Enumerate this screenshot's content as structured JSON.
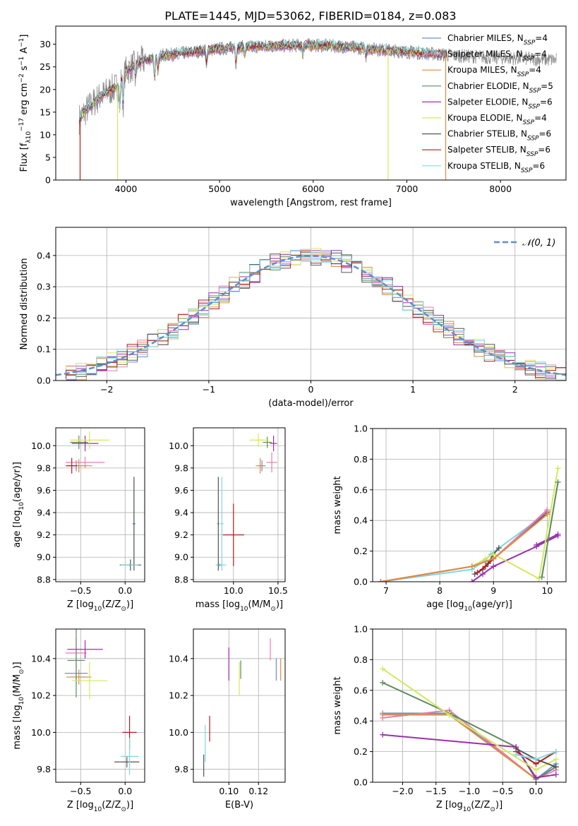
{
  "figure_title": "PLATE=1445, MJD=53062, FIBERID=0184, z=0.083",
  "colors": {
    "chabrier_miles": "#6a8fd8",
    "salpeter_miles": "#e87fb0",
    "kroupa_miles": "#e08a3c",
    "chabrier_elodie": "#5c8a5c",
    "salpeter_elodie": "#9b2fb0",
    "kroupa_elodie": "#d4e85a",
    "chabrier_stelib": "#555555",
    "salpeter_stelib": "#b01e1e",
    "kroupa_stelib": "#7fd8e0",
    "normal_curve": "#5b8fd6"
  },
  "chart_data": [
    {
      "id": "spectrum",
      "type": "line",
      "title": "",
      "xlabel": "wavelength [Angstrom, rest frame]",
      "ylabel_parts": [
        "Flux [f",
        "λ",
        "10",
        "−17",
        " erg cm",
        "−2",
        " s",
        "−1",
        " A",
        "−1",
        "]"
      ],
      "xlim": [
        3250,
        8700
      ],
      "ylim": [
        0,
        34
      ],
      "xticks": [
        4000,
        5000,
        6000,
        7000,
        8000
      ],
      "yticks": [
        0,
        5,
        10,
        15,
        20,
        25,
        30
      ],
      "grid": false,
      "legend_position": "upper-right",
      "legend": [
        {
          "base": "Chabrier MILES, N",
          "sub": "SSP",
          "tail": "=4",
          "color": "#6a8fd8"
        },
        {
          "base": "Salpeter MILES, N",
          "sub": "SSP",
          "tail": "=4",
          "color": "#e87fb0"
        },
        {
          "base": "Kroupa MILES, N",
          "sub": "SSP",
          "tail": "=4",
          "color": "#e08a3c"
        },
        {
          "base": "Chabrier ELODIE, N",
          "sub": "SSP",
          "tail": "=5",
          "color": "#5c8a5c"
        },
        {
          "base": "Salpeter ELODIE, N",
          "sub": "SSP",
          "tail": "=6",
          "color": "#9b2fb0"
        },
        {
          "base": "Kroupa ELODIE, N",
          "sub": "SSP",
          "tail": "=4",
          "color": "#d4e85a"
        },
        {
          "base": "Chabrier STELIB, N",
          "sub": "SSP",
          "tail": "=6",
          "color": "#555555"
        },
        {
          "base": "Salpeter STELIB, N",
          "sub": "SSP",
          "tail": "=6",
          "color": "#b01e1e"
        },
        {
          "base": "Kroupa STELIB, N",
          "sub": "SSP",
          "tail": "=6",
          "color": "#7fd8e0"
        }
      ],
      "continuum": {
        "x": [
          3500,
          3600,
          3700,
          3800,
          3900,
          4000,
          4100,
          4200,
          4400,
          4600,
          4800,
          5000,
          5200,
          5500,
          5800,
          6000,
          6300,
          6600,
          6900,
          7200,
          7500,
          8000,
          8300,
          8600
        ],
        "y": [
          13.5,
          16,
          18,
          19.5,
          20.5,
          24,
          25.5,
          26.5,
          27.5,
          28,
          28.5,
          29,
          29.3,
          29.6,
          29.7,
          29.8,
          29.5,
          29,
          28.5,
          28,
          27.5,
          27,
          26.8,
          26.5
        ]
      },
      "model_range": [
        3500,
        7430
      ],
      "data_range": [
        3500,
        8600
      ],
      "absorption_lines": [
        {
          "x": 3934,
          "depth": 0.3
        },
        {
          "x": 3969,
          "depth": 0.28
        },
        {
          "x": 4101,
          "depth": 0.12
        },
        {
          "x": 4305,
          "depth": 0.18
        },
        {
          "x": 4341,
          "depth": 0.1
        },
        {
          "x": 4861,
          "depth": 0.1
        },
        {
          "x": 5175,
          "depth": 0.12
        },
        {
          "x": 5270,
          "depth": 0.06
        },
        {
          "x": 5890,
          "depth": 0.08
        },
        {
          "x": 6563,
          "depth": 0.06
        }
      ],
      "model_dips": [
        {
          "x": 3510,
          "to": 0,
          "color": "#b01e1e"
        },
        {
          "x": 3910,
          "to": 0,
          "color": "#d4e85a"
        },
        {
          "x": 6800,
          "to": 0,
          "color": "#d4e85a"
        },
        {
          "x": 7415,
          "to": 0,
          "color": "#e08a3c"
        }
      ]
    },
    {
      "id": "residuals",
      "type": "line",
      "title": "",
      "xlabel": "(data-model)/error",
      "ylabel": "Normed distribution",
      "xlim": [
        -2.5,
        2.5
      ],
      "ylim": [
        0,
        0.49
      ],
      "xticks": [
        -2,
        -1,
        0,
        1,
        2
      ],
      "xticklabels": [
        "−2",
        "−1",
        "0",
        "1",
        "2"
      ],
      "yticks": [
        0,
        0.1,
        0.2,
        0.3,
        0.4
      ],
      "yticklabels": [
        "0.0",
        "0.1",
        "0.2",
        "0.3",
        "0.4"
      ],
      "grid": true,
      "legend_position": "upper-right",
      "legend_label": "𝒩(0, 1)",
      "bin_width": 0.1,
      "normal": {
        "mean": 0,
        "sigma": 1
      }
    },
    {
      "id": "age_vs_Z",
      "type": "scatter",
      "xlabel_parts": [
        "Z [log",
        "10",
        "(Z/Z",
        "⊙",
        ")]"
      ],
      "ylabel_parts": [
        "age  [log",
        "10",
        "(age/yr)]"
      ],
      "xlim": [
        -0.78,
        0.22
      ],
      "ylim": [
        8.78,
        10.16
      ],
      "xticks": [
        -0.5,
        0.0
      ],
      "xticklabels": [
        "−0.5",
        "0.0"
      ],
      "yticks": [
        8.8,
        9.0,
        9.2,
        9.4,
        9.6,
        9.8,
        10.0
      ],
      "yticklabels": [
        "8.8",
        "9.0",
        "9.2",
        "9.4",
        "9.6",
        "9.8",
        "10.0"
      ],
      "grid": true,
      "points": [
        {
          "x": -0.55,
          "y": 9.82,
          "xerr": 0.12,
          "yerr": 0.05,
          "color": "#6a8fd8"
        },
        {
          "x": -0.45,
          "y": 9.85,
          "xerr": 0.22,
          "yerr": 0.05,
          "color": "#e87fb0"
        },
        {
          "x": -0.52,
          "y": 9.82,
          "xerr": 0.15,
          "yerr": 0.06,
          "color": "#e08a3c"
        },
        {
          "x": -0.52,
          "y": 10.03,
          "xerr": 0.1,
          "yerr": 0.06,
          "color": "#5c8a5c"
        },
        {
          "x": -0.45,
          "y": 10.02,
          "xerr": 0.15,
          "yerr": 0.07,
          "color": "#9b2fb0"
        },
        {
          "x": -0.4,
          "y": 10.05,
          "xerr": 0.22,
          "yerr": 0.08,
          "color": "#d4e85a"
        },
        {
          "x": 0.06,
          "y": 8.93,
          "xerr": 0.12,
          "yerr": 0.05,
          "color": "#555555"
        },
        {
          "x": -0.6,
          "y": 9.82,
          "xerr": 0.06,
          "yerr": 0.07,
          "color": "#b01e1e"
        },
        {
          "x": 0.1,
          "y": 9.3,
          "xerr": 0.02,
          "yerr": 0.38,
          "color": "#7fd8e0"
        },
        {
          "x": 0.1,
          "y": 9.3,
          "xerr": 0.01,
          "yerr": 0.42,
          "color": "#555555"
        },
        {
          "x": 0.05,
          "y": 8.93,
          "xerr": 0.1,
          "yerr": 0.01,
          "color": "#7fd8e0"
        }
      ]
    },
    {
      "id": "age_vs_mass",
      "type": "scatter",
      "xlabel_parts": [
        "mass [log",
        "10",
        "(M/M",
        "⊙",
        ")]"
      ],
      "ylabel_parts": [],
      "xlim": [
        9.55,
        10.58
      ],
      "ylim": [
        8.78,
        10.16
      ],
      "xticks": [
        10.0,
        10.5
      ],
      "xticklabels": [
        "10.0",
        "10.5"
      ],
      "yticks": [
        8.8,
        9.0,
        9.2,
        9.4,
        9.6,
        9.8,
        10.0
      ],
      "yticklabels": [
        "8.8",
        "9.0",
        "9.2",
        "9.4",
        "9.6",
        "9.8",
        "10.0"
      ],
      "grid": true,
      "points": [
        {
          "x": 10.32,
          "y": 9.82,
          "xerr": 0.04,
          "yerr": 0.05,
          "color": "#6a8fd8"
        },
        {
          "x": 10.43,
          "y": 9.85,
          "xerr": 0.06,
          "yerr": 0.09,
          "color": "#e87fb0"
        },
        {
          "x": 10.3,
          "y": 9.82,
          "xerr": 0.05,
          "yerr": 0.07,
          "color": "#e08a3c"
        },
        {
          "x": 10.38,
          "y": 10.03,
          "xerr": 0.05,
          "yerr": 0.05,
          "color": "#5c8a5c"
        },
        {
          "x": 10.45,
          "y": 10.02,
          "xerr": 0.04,
          "yerr": 0.07,
          "color": "#9b2fb0"
        },
        {
          "x": 10.28,
          "y": 10.05,
          "xerr": 0.1,
          "yerr": 0.06,
          "color": "#d4e85a"
        },
        {
          "x": 9.84,
          "y": 8.93,
          "xerr": 0.03,
          "yerr": 0.01,
          "color": "#555555"
        },
        {
          "x": 10.0,
          "y": 9.2,
          "xerr": 0.12,
          "yerr": 0.28,
          "color": "#b01e1e"
        },
        {
          "x": 9.87,
          "y": 9.3,
          "xerr": 0.02,
          "yerr": 0.42,
          "color": "#7fd8e0"
        },
        {
          "x": 9.83,
          "y": 9.3,
          "xerr": 0.01,
          "yerr": 0.42,
          "color": "#555555"
        },
        {
          "x": 9.86,
          "y": 8.93,
          "xerr": 0.06,
          "yerr": 0.01,
          "color": "#7fd8e0"
        }
      ]
    },
    {
      "id": "weight_vs_age",
      "type": "line",
      "xlabel_parts": [
        "age  [log",
        "10",
        "(age/yr)]"
      ],
      "ylabel": "mass weight",
      "xlim": [
        6.75,
        10.35
      ],
      "ylim": [
        0,
        1.0
      ],
      "xticks": [
        7,
        8,
        9,
        10
      ],
      "xticklabels": [
        "7",
        "8",
        "9",
        "10"
      ],
      "yticks": [
        0,
        0.2,
        0.4,
        0.6,
        0.8,
        1.0
      ],
      "yticklabels": [
        "0.0",
        "0.2",
        "0.4",
        "0.6",
        "0.8",
        "1.0"
      ],
      "grid": true,
      "series": [
        {
          "color": "#7fd8e0",
          "x": [
            6.9,
            8.6,
            8.85,
            8.95,
            9.1,
            10.0
          ],
          "y": [
            0.0,
            0.08,
            0.14,
            0.18,
            0.22,
            0.45
          ]
        },
        {
          "color": "#555555",
          "x": [
            8.65,
            8.8,
            8.9,
            9.0,
            9.1
          ],
          "y": [
            0.05,
            0.08,
            0.12,
            0.18,
            0.22
          ]
        },
        {
          "color": "#b01e1e",
          "x": [
            8.7,
            8.85,
            9.0,
            10.0
          ],
          "y": [
            0.06,
            0.1,
            0.15,
            0.45
          ]
        },
        {
          "color": "#9b2fb0",
          "x": [
            8.6,
            8.8,
            9.0,
            9.8,
            10.2
          ],
          "y": [
            0.0,
            0.05,
            0.1,
            0.23,
            0.3
          ]
        },
        {
          "color": "#9b2fb0",
          "x": [
            9.8,
            10.2
          ],
          "y": [
            0.24,
            0.31
          ]
        },
        {
          "color": "#d4e85a",
          "x": [
            8.6,
            8.85,
            9.0,
            9.85,
            10.2
          ],
          "y": [
            0.1,
            0.15,
            0.18,
            0.02,
            0.74
          ]
        },
        {
          "color": "#5c8a5c",
          "x": [
            9.9,
            10.2
          ],
          "y": [
            0.03,
            0.65
          ]
        },
        {
          "color": "#6a8fd8",
          "x": [
            6.9,
            8.6,
            9.0,
            10.0
          ],
          "y": [
            0.0,
            0.1,
            0.15,
            0.46
          ]
        },
        {
          "color": "#e87fb0",
          "x": [
            6.9,
            8.6,
            9.0,
            10.0
          ],
          "y": [
            0.0,
            0.1,
            0.15,
            0.47
          ]
        },
        {
          "color": "#e08a3c",
          "x": [
            6.9,
            8.6,
            9.0,
            10.0
          ],
          "y": [
            0.0,
            0.1,
            0.15,
            0.44
          ]
        }
      ]
    },
    {
      "id": "mass_vs_Z",
      "type": "scatter",
      "xlabel_parts": [
        "Z [log",
        "10",
        "(Z/Z",
        "⊙",
        ")]"
      ],
      "ylabel_parts": [
        "mass [log",
        "10",
        "(M/M",
        "⊙",
        ")]"
      ],
      "xlim": [
        -0.78,
        0.22
      ],
      "ylim": [
        9.73,
        10.56
      ],
      "xticks": [
        -0.5,
        0.0
      ],
      "xticklabels": [
        "−0.5",
        "0.0"
      ],
      "yticks": [
        9.8,
        10.0,
        10.2,
        10.4
      ],
      "yticklabels": [
        "9.8",
        "10.0",
        "10.2",
        "10.4"
      ],
      "grid": true,
      "points": [
        {
          "x": -0.55,
          "y": 10.32,
          "xerr": 0.13,
          "yerr": 0.05,
          "color": "#6a8fd8"
        },
        {
          "x": -0.55,
          "y": 10.43,
          "xerr": 0.12,
          "yerr": 0.08,
          "color": "#e87fb0"
        },
        {
          "x": -0.52,
          "y": 10.3,
          "xerr": 0.14,
          "yerr": 0.04,
          "color": "#e08a3c"
        },
        {
          "x": -0.55,
          "y": 10.39,
          "xerr": 0.1,
          "yerr": 0.2,
          "color": "#5c8a5c"
        },
        {
          "x": -0.45,
          "y": 10.45,
          "xerr": 0.2,
          "yerr": 0.05,
          "color": "#9b2fb0"
        },
        {
          "x": -0.4,
          "y": 10.28,
          "xerr": 0.2,
          "yerr": 0.1,
          "color": "#d4e85a"
        },
        {
          "x": 0.02,
          "y": 9.84,
          "xerr": 0.14,
          "yerr": 0.03,
          "color": "#555555"
        },
        {
          "x": 0.05,
          "y": 10.0,
          "xerr": 0.08,
          "yerr": 0.09,
          "color": "#b01e1e"
        },
        {
          "x": 0.05,
          "y": 9.87,
          "xerr": 0.1,
          "yerr": 0.1,
          "color": "#7fd8e0"
        }
      ]
    },
    {
      "id": "mass_vs_EBV",
      "type": "scatter",
      "xlabel": "E(B-V)",
      "ylabel_parts": [],
      "xlim": [
        0.076,
        0.138
      ],
      "ylim": [
        9.73,
        10.56
      ],
      "xticks": [
        0.1,
        0.12
      ],
      "xticklabels": [
        "0.10",
        "0.12"
      ],
      "yticks": [
        9.8,
        10.0,
        10.2,
        10.4
      ],
      "yticklabels": [
        "9.8",
        "10.0",
        "10.2",
        "10.4"
      ],
      "grid": true,
      "points": [
        {
          "x": 0.132,
          "y": 10.34,
          "xerr": 0,
          "yerr": 0.06,
          "color": "#6a8fd8"
        },
        {
          "x": 0.128,
          "y": 10.45,
          "xerr": 0,
          "yerr": 0.06,
          "color": "#e87fb0"
        },
        {
          "x": 0.135,
          "y": 10.34,
          "xerr": 0,
          "yerr": 0.06,
          "color": "#e08a3c"
        },
        {
          "x": 0.108,
          "y": 10.34,
          "xerr": 0,
          "yerr": 0.05,
          "color": "#5c8a5c"
        },
        {
          "x": 0.1,
          "y": 10.37,
          "xerr": 0,
          "yerr": 0.09,
          "color": "#9b2fb0"
        },
        {
          "x": 0.107,
          "y": 10.29,
          "xerr": 0,
          "yerr": 0.09,
          "color": "#d4e85a"
        },
        {
          "x": 0.083,
          "y": 9.82,
          "xerr": 0,
          "yerr": 0.06,
          "color": "#555555"
        },
        {
          "x": 0.087,
          "y": 10.02,
          "xerr": 0,
          "yerr": 0.07,
          "color": "#b01e1e"
        },
        {
          "x": 0.084,
          "y": 9.94,
          "xerr": 0,
          "yerr": 0.1,
          "color": "#7fd8e0"
        }
      ]
    },
    {
      "id": "weight_vs_Z",
      "type": "line",
      "xlabel_parts": [
        "Z [log",
        "10",
        "(Z/Z",
        "⊙",
        ")]"
      ],
      "ylabel": "mass weight",
      "xlim": [
        -2.45,
        0.45
      ],
      "ylim": [
        0,
        1.0
      ],
      "xticks": [
        -2.0,
        -1.5,
        -1.0,
        -0.5,
        0.0
      ],
      "xticklabels": [
        "−2.0",
        "−1.5",
        "−1.0",
        "−0.5",
        "0.0"
      ],
      "yticks": [
        0,
        0.2,
        0.4,
        0.6,
        0.8,
        1.0
      ],
      "yticklabels": [
        "0.0",
        "0.2",
        "0.4",
        "0.6",
        "0.8",
        "1.0"
      ],
      "grid": true,
      "series": [
        {
          "color": "#6a8fd8",
          "x": [
            -2.3,
            -1.3,
            0.0,
            0.3
          ],
          "y": [
            0.45,
            0.45,
            0.02,
            0.12
          ]
        },
        {
          "color": "#e87fb0",
          "x": [
            -2.3,
            -1.3,
            0.0,
            0.3
          ],
          "y": [
            0.42,
            0.47,
            0.02,
            0.08
          ]
        },
        {
          "color": "#e08a3c",
          "x": [
            -2.3,
            -1.3,
            0.0,
            0.3
          ],
          "y": [
            0.44,
            0.44,
            0.02,
            0.1
          ]
        },
        {
          "color": "#5c8a5c",
          "x": [
            -2.3,
            -1.3,
            -0.3,
            0.0,
            0.3
          ],
          "y": [
            0.65,
            0.45,
            0.23,
            0.02,
            0.1
          ]
        },
        {
          "color": "#9b2fb0",
          "x": [
            -2.3,
            -0.3,
            0.0,
            0.3
          ],
          "y": [
            0.31,
            0.23,
            0.03,
            0.05
          ]
        },
        {
          "color": "#d4e85a",
          "x": [
            -2.3,
            -1.3,
            0.0,
            0.3
          ],
          "y": [
            0.74,
            0.44,
            0.08,
            0.15
          ]
        },
        {
          "color": "#555555",
          "x": [
            -0.3,
            0.0,
            0.3
          ],
          "y": [
            0.22,
            0.15,
            0.1
          ]
        },
        {
          "color": "#b01e1e",
          "x": [
            -0.3,
            0.0,
            0.3
          ],
          "y": [
            0.2,
            0.12,
            0.2
          ]
        },
        {
          "color": "#7fd8e0",
          "x": [
            -0.3,
            0.0,
            0.3
          ],
          "y": [
            0.18,
            0.15,
            0.2
          ]
        }
      ]
    }
  ]
}
